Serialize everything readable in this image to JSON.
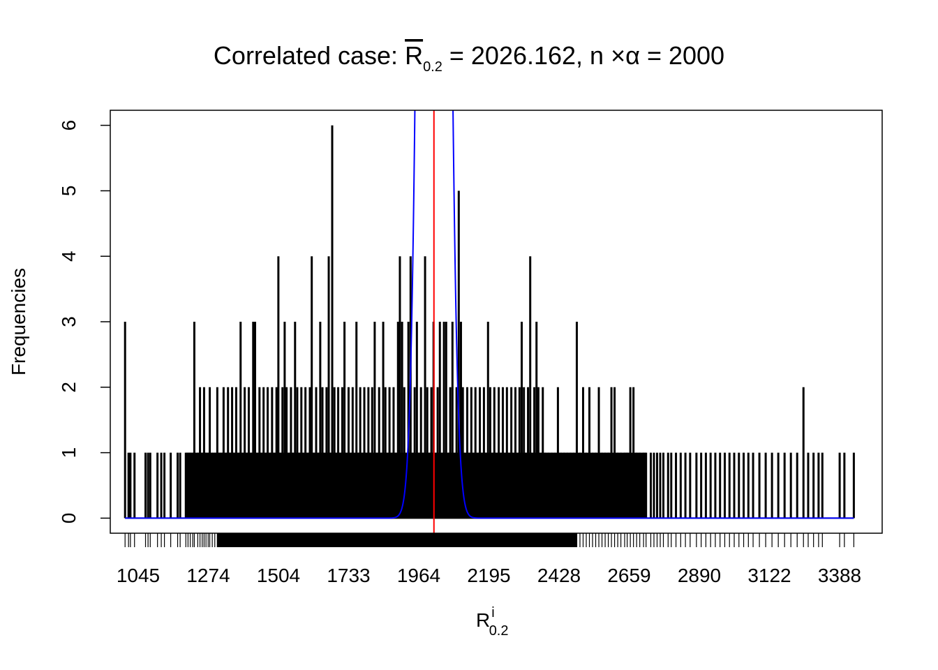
{
  "chart_data": {
    "type": "bar",
    "title": {
      "prefix": "Correlated case: ",
      "symbol": "R",
      "symbol_subscript": "0.2",
      "mean_value_text": " = 2026.162, n ",
      "times_sign": "×",
      "alpha_symbol": "α",
      "target_text": " = 2000"
    },
    "xlabel": {
      "symbol": "R",
      "superscript": "i",
      "subscript": "0.2"
    },
    "ylabel": "Frequencies",
    "xlim": [
      998,
      3450
    ],
    "ylim": [
      -0.23,
      6.23
    ],
    "x_tick_labels": [
      "1045",
      "1274",
      "1504",
      "1733",
      "1964",
      "2195",
      "2428",
      "2659",
      "2890",
      "3122",
      "3388"
    ],
    "y_ticks": [
      0,
      1,
      2,
      3,
      4,
      5,
      6
    ],
    "grid": false,
    "legend": "none",
    "colors": {
      "bars": "#000000",
      "density_curve": "#0000ff",
      "mean_line": "#ff0000",
      "box": "#000000"
    },
    "mean_line_x": 2026.162,
    "density_curve": {
      "description_free": true,
      "center": 2026.162,
      "sd": 30,
      "scale": 3600
    },
    "spike_records": [
      [
        1045,
        3
      ],
      [
        1056,
        1
      ],
      [
        1062,
        1
      ],
      [
        1075,
        1
      ],
      [
        1110,
        1
      ],
      [
        1118,
        1
      ],
      [
        1125,
        1
      ],
      [
        1148,
        1
      ],
      [
        1160,
        1
      ],
      [
        1170,
        1
      ],
      [
        1190,
        1
      ],
      [
        1212,
        1
      ],
      [
        1220,
        1
      ],
      [
        1238,
        1
      ],
      [
        1245,
        1
      ],
      [
        1252,
        1
      ],
      [
        1260,
        1
      ],
      [
        1265,
        3
      ],
      [
        1276,
        1
      ],
      [
        1283,
        2
      ],
      [
        1290,
        1
      ],
      [
        1296,
        2
      ],
      [
        1302,
        1
      ],
      [
        1309,
        1
      ],
      [
        1314,
        2
      ],
      [
        1322,
        1
      ],
      [
        1330,
        1
      ],
      [
        1338,
        2
      ],
      [
        1345,
        1
      ],
      [
        1352,
        1
      ],
      [
        1358,
        2
      ],
      [
        1365,
        1
      ],
      [
        1372,
        2
      ],
      [
        1378,
        1
      ],
      [
        1385,
        2
      ],
      [
        1392,
        1
      ],
      [
        1398,
        2
      ],
      [
        1405,
        1
      ],
      [
        1412,
        3
      ],
      [
        1418,
        1
      ],
      [
        1425,
        2
      ],
      [
        1432,
        1
      ],
      [
        1438,
        2
      ],
      [
        1445,
        1
      ],
      [
        1452,
        3
      ],
      [
        1458,
        3
      ],
      [
        1465,
        1
      ],
      [
        1472,
        2
      ],
      [
        1478,
        1
      ],
      [
        1485,
        2
      ],
      [
        1492,
        1
      ],
      [
        1498,
        2
      ],
      [
        1505,
        1
      ],
      [
        1512,
        2
      ],
      [
        1520,
        1
      ],
      [
        1526,
        2
      ],
      [
        1532,
        4
      ],
      [
        1538,
        1
      ],
      [
        1545,
        2
      ],
      [
        1552,
        3
      ],
      [
        1558,
        2
      ],
      [
        1565,
        1
      ],
      [
        1572,
        2
      ],
      [
        1578,
        1
      ],
      [
        1585,
        3
      ],
      [
        1592,
        2
      ],
      [
        1598,
        1
      ],
      [
        1605,
        2
      ],
      [
        1612,
        1
      ],
      [
        1618,
        2
      ],
      [
        1625,
        1
      ],
      [
        1632,
        2
      ],
      [
        1638,
        4
      ],
      [
        1645,
        1
      ],
      [
        1652,
        2
      ],
      [
        1658,
        1
      ],
      [
        1665,
        3
      ],
      [
        1672,
        2
      ],
      [
        1678,
        1
      ],
      [
        1685,
        2
      ],
      [
        1692,
        4
      ],
      [
        1698,
        1
      ],
      [
        1703,
        6
      ],
      [
        1710,
        2
      ],
      [
        1716,
        1
      ],
      [
        1722,
        2
      ],
      [
        1728,
        1
      ],
      [
        1735,
        2
      ],
      [
        1742,
        3
      ],
      [
        1748,
        1
      ],
      [
        1755,
        2
      ],
      [
        1762,
        1
      ],
      [
        1768,
        2
      ],
      [
        1775,
        1
      ],
      [
        1780,
        3
      ],
      [
        1786,
        1
      ],
      [
        1792,
        2
      ],
      [
        1798,
        1
      ],
      [
        1805,
        2
      ],
      [
        1812,
        1
      ],
      [
        1818,
        2
      ],
      [
        1825,
        1
      ],
      [
        1830,
        2
      ],
      [
        1838,
        3
      ],
      [
        1845,
        1
      ],
      [
        1852,
        2
      ],
      [
        1858,
        1
      ],
      [
        1865,
        3
      ],
      [
        1872,
        2
      ],
      [
        1878,
        1
      ],
      [
        1885,
        2
      ],
      [
        1892,
        1
      ],
      [
        1898,
        2
      ],
      [
        1905,
        1
      ],
      [
        1912,
        3
      ],
      [
        1918,
        4
      ],
      [
        1925,
        3
      ],
      [
        1932,
        2
      ],
      [
        1938,
        1
      ],
      [
        1945,
        3
      ],
      [
        1952,
        4
      ],
      [
        1958,
        1
      ],
      [
        1965,
        2
      ],
      [
        1972,
        3
      ],
      [
        1978,
        1
      ],
      [
        1985,
        2
      ],
      [
        1992,
        1
      ],
      [
        1998,
        4
      ],
      [
        2005,
        2
      ],
      [
        2012,
        1
      ],
      [
        2018,
        2
      ],
      [
        2025,
        3
      ],
      [
        2032,
        1
      ],
      [
        2038,
        2
      ],
      [
        2045,
        3
      ],
      [
        2052,
        1
      ],
      [
        2058,
        3
      ],
      [
        2065,
        3
      ],
      [
        2072,
        1
      ],
      [
        2078,
        2
      ],
      [
        2085,
        3
      ],
      [
        2092,
        1
      ],
      [
        2098,
        2
      ],
      [
        2105,
        5
      ],
      [
        2112,
        3
      ],
      [
        2118,
        2
      ],
      [
        2125,
        1
      ],
      [
        2132,
        2
      ],
      [
        2138,
        1
      ],
      [
        2145,
        2
      ],
      [
        2152,
        1
      ],
      [
        2158,
        2
      ],
      [
        2165,
        1
      ],
      [
        2172,
        2
      ],
      [
        2178,
        1
      ],
      [
        2185,
        2
      ],
      [
        2192,
        1
      ],
      [
        2198,
        3
      ],
      [
        2205,
        2
      ],
      [
        2212,
        1
      ],
      [
        2218,
        2
      ],
      [
        2225,
        1
      ],
      [
        2232,
        2
      ],
      [
        2238,
        1
      ],
      [
        2245,
        2
      ],
      [
        2252,
        1
      ],
      [
        2258,
        2
      ],
      [
        2265,
        1
      ],
      [
        2272,
        2
      ],
      [
        2278,
        1
      ],
      [
        2285,
        2
      ],
      [
        2292,
        1
      ],
      [
        2298,
        2
      ],
      [
        2305,
        3
      ],
      [
        2312,
        2
      ],
      [
        2318,
        1
      ],
      [
        2325,
        2
      ],
      [
        2332,
        4
      ],
      [
        2338,
        1
      ],
      [
        2345,
        2
      ],
      [
        2352,
        3
      ],
      [
        2358,
        2
      ],
      [
        2365,
        1
      ],
      [
        2372,
        2
      ],
      [
        2380,
        1
      ],
      [
        2390,
        1
      ],
      [
        2400,
        1
      ],
      [
        2410,
        1
      ],
      [
        2420,
        2
      ],
      [
        2430,
        1
      ],
      [
        2440,
        1
      ],
      [
        2450,
        1
      ],
      [
        2460,
        1
      ],
      [
        2470,
        1
      ],
      [
        2480,
        3
      ],
      [
        2490,
        1
      ],
      [
        2500,
        2
      ],
      [
        2510,
        1
      ],
      [
        2520,
        2
      ],
      [
        2530,
        1
      ],
      [
        2540,
        1
      ],
      [
        2550,
        2
      ],
      [
        2560,
        1
      ],
      [
        2570,
        1
      ],
      [
        2580,
        1
      ],
      [
        2590,
        2
      ],
      [
        2600,
        2
      ],
      [
        2610,
        1
      ],
      [
        2620,
        1
      ],
      [
        2632,
        1
      ],
      [
        2640,
        1
      ],
      [
        2650,
        2
      ],
      [
        2660,
        2
      ],
      [
        2670,
        1
      ],
      [
        2680,
        1
      ],
      [
        2692,
        1
      ],
      [
        2700,
        1
      ],
      [
        2715,
        1
      ],
      [
        2725,
        1
      ],
      [
        2735,
        1
      ],
      [
        2745,
        1
      ],
      [
        2755,
        1
      ],
      [
        2770,
        1
      ],
      [
        2780,
        1
      ],
      [
        2795,
        1
      ],
      [
        2810,
        1
      ],
      [
        2825,
        1
      ],
      [
        2840,
        1
      ],
      [
        2860,
        1
      ],
      [
        2875,
        1
      ],
      [
        2890,
        1
      ],
      [
        2905,
        1
      ],
      [
        2920,
        1
      ],
      [
        2935,
        1
      ],
      [
        2950,
        1
      ],
      [
        2965,
        1
      ],
      [
        2980,
        1
      ],
      [
        2995,
        1
      ],
      [
        3010,
        1
      ],
      [
        3025,
        1
      ],
      [
        3040,
        1
      ],
      [
        3060,
        1
      ],
      [
        3080,
        1
      ],
      [
        3100,
        1
      ],
      [
        3120,
        1
      ],
      [
        3140,
        1
      ],
      [
        3160,
        1
      ],
      [
        3180,
        1
      ],
      [
        3200,
        2
      ],
      [
        3215,
        1
      ],
      [
        3232,
        1
      ],
      [
        3248,
        1
      ],
      [
        3260,
        1
      ],
      [
        3315,
        1
      ],
      [
        3330,
        1
      ],
      [
        3360,
        1
      ]
    ]
  }
}
